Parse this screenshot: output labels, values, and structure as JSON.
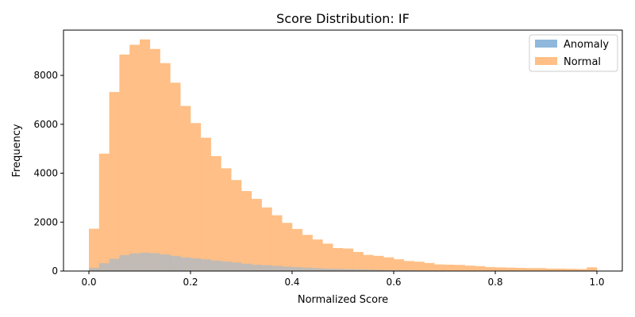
{
  "chart_data": {
    "type": "bar",
    "title": "Score Distribution: IF",
    "xlabel": "Normalized Score",
    "ylabel": "Frequency",
    "xlim": [
      -0.05,
      1.05
    ],
    "ylim": [
      0,
      9850
    ],
    "x_ticks": [
      0.0,
      0.2,
      0.4,
      0.6,
      0.8,
      1.0
    ],
    "x_tick_labels": [
      "0.0",
      "0.2",
      "0.4",
      "0.6",
      "0.8",
      "1.0"
    ],
    "y_ticks": [
      0,
      2000,
      4000,
      6000,
      8000
    ],
    "y_tick_labels": [
      "0",
      "2000",
      "4000",
      "6000",
      "8000"
    ],
    "bins": 50,
    "bin_range": [
      0,
      1
    ],
    "grid": false,
    "legend_position": "top-right",
    "series": [
      {
        "name": "Normal",
        "color": "#ffbf86",
        "values": [
          1730,
          4800,
          7320,
          8850,
          9250,
          9470,
          9080,
          8500,
          7700,
          6750,
          6050,
          5450,
          4700,
          4200,
          3720,
          3270,
          2950,
          2600,
          2280,
          1970,
          1720,
          1480,
          1290,
          1120,
          940,
          920,
          780,
          660,
          620,
          560,
          480,
          410,
          380,
          330,
          270,
          260,
          250,
          220,
          200,
          160,
          150,
          140,
          130,
          120,
          120,
          100,
          100,
          90,
          80,
          150
        ]
      },
      {
        "name": "Anomaly",
        "color": "#8fb8dc",
        "values": [
          130,
          320,
          500,
          650,
          720,
          750,
          730,
          680,
          620,
          560,
          520,
          480,
          430,
          390,
          350,
          300,
          260,
          240,
          210,
          180,
          160,
          140,
          120,
          100,
          90,
          80,
          70,
          60,
          50,
          40,
          35,
          30,
          25,
          20,
          18,
          15,
          12,
          10,
          8,
          7,
          6,
          5,
          5,
          4,
          3,
          3,
          2,
          2,
          2,
          2
        ]
      }
    ]
  }
}
